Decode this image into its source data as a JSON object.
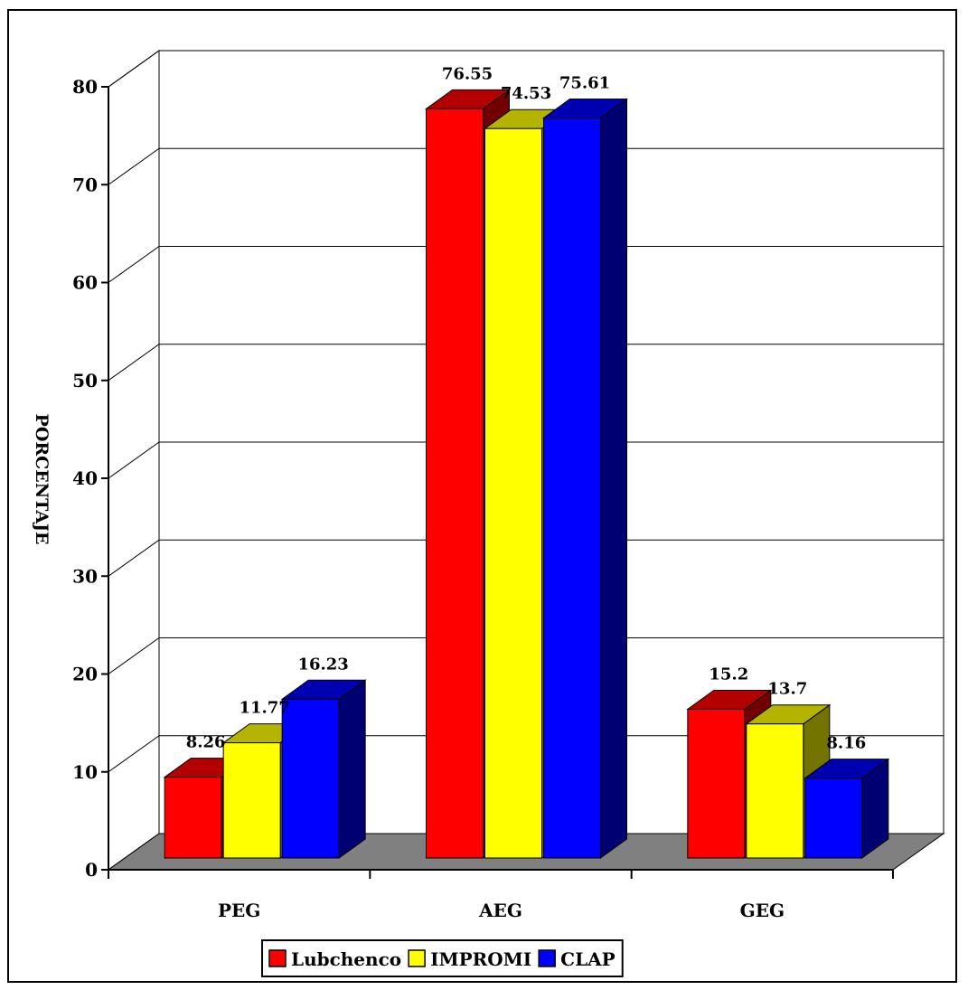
{
  "chart_data": {
    "type": "bar",
    "title": "",
    "xlabel": "",
    "ylabel": "PORCENTAJE",
    "ylim": [
      0,
      80
    ],
    "yticks": [
      0,
      10,
      20,
      30,
      40,
      50,
      60,
      70,
      80
    ],
    "categories": [
      "PEG",
      "AEG",
      "GEG"
    ],
    "series": [
      {
        "name": "Lubchenco",
        "values": [
          8.26,
          76.55,
          15.2
        ],
        "labels": [
          "8.26",
          "76.55",
          "15.2"
        ],
        "color": "#ff0000"
      },
      {
        "name": "IMPROMI",
        "values": [
          11.77,
          74.53,
          13.7
        ],
        "labels": [
          "11.77",
          "74.53",
          "13.7"
        ],
        "color": "#ffff00"
      },
      {
        "name": "CLAP",
        "values": [
          16.23,
          75.61,
          8.16
        ],
        "labels": [
          "16.23",
          "75.61",
          "8.16"
        ],
        "color": "#0000ff"
      }
    ],
    "grid": true,
    "style": "3d-bars",
    "legend_position": "bottom",
    "floor_color": "#808080"
  }
}
